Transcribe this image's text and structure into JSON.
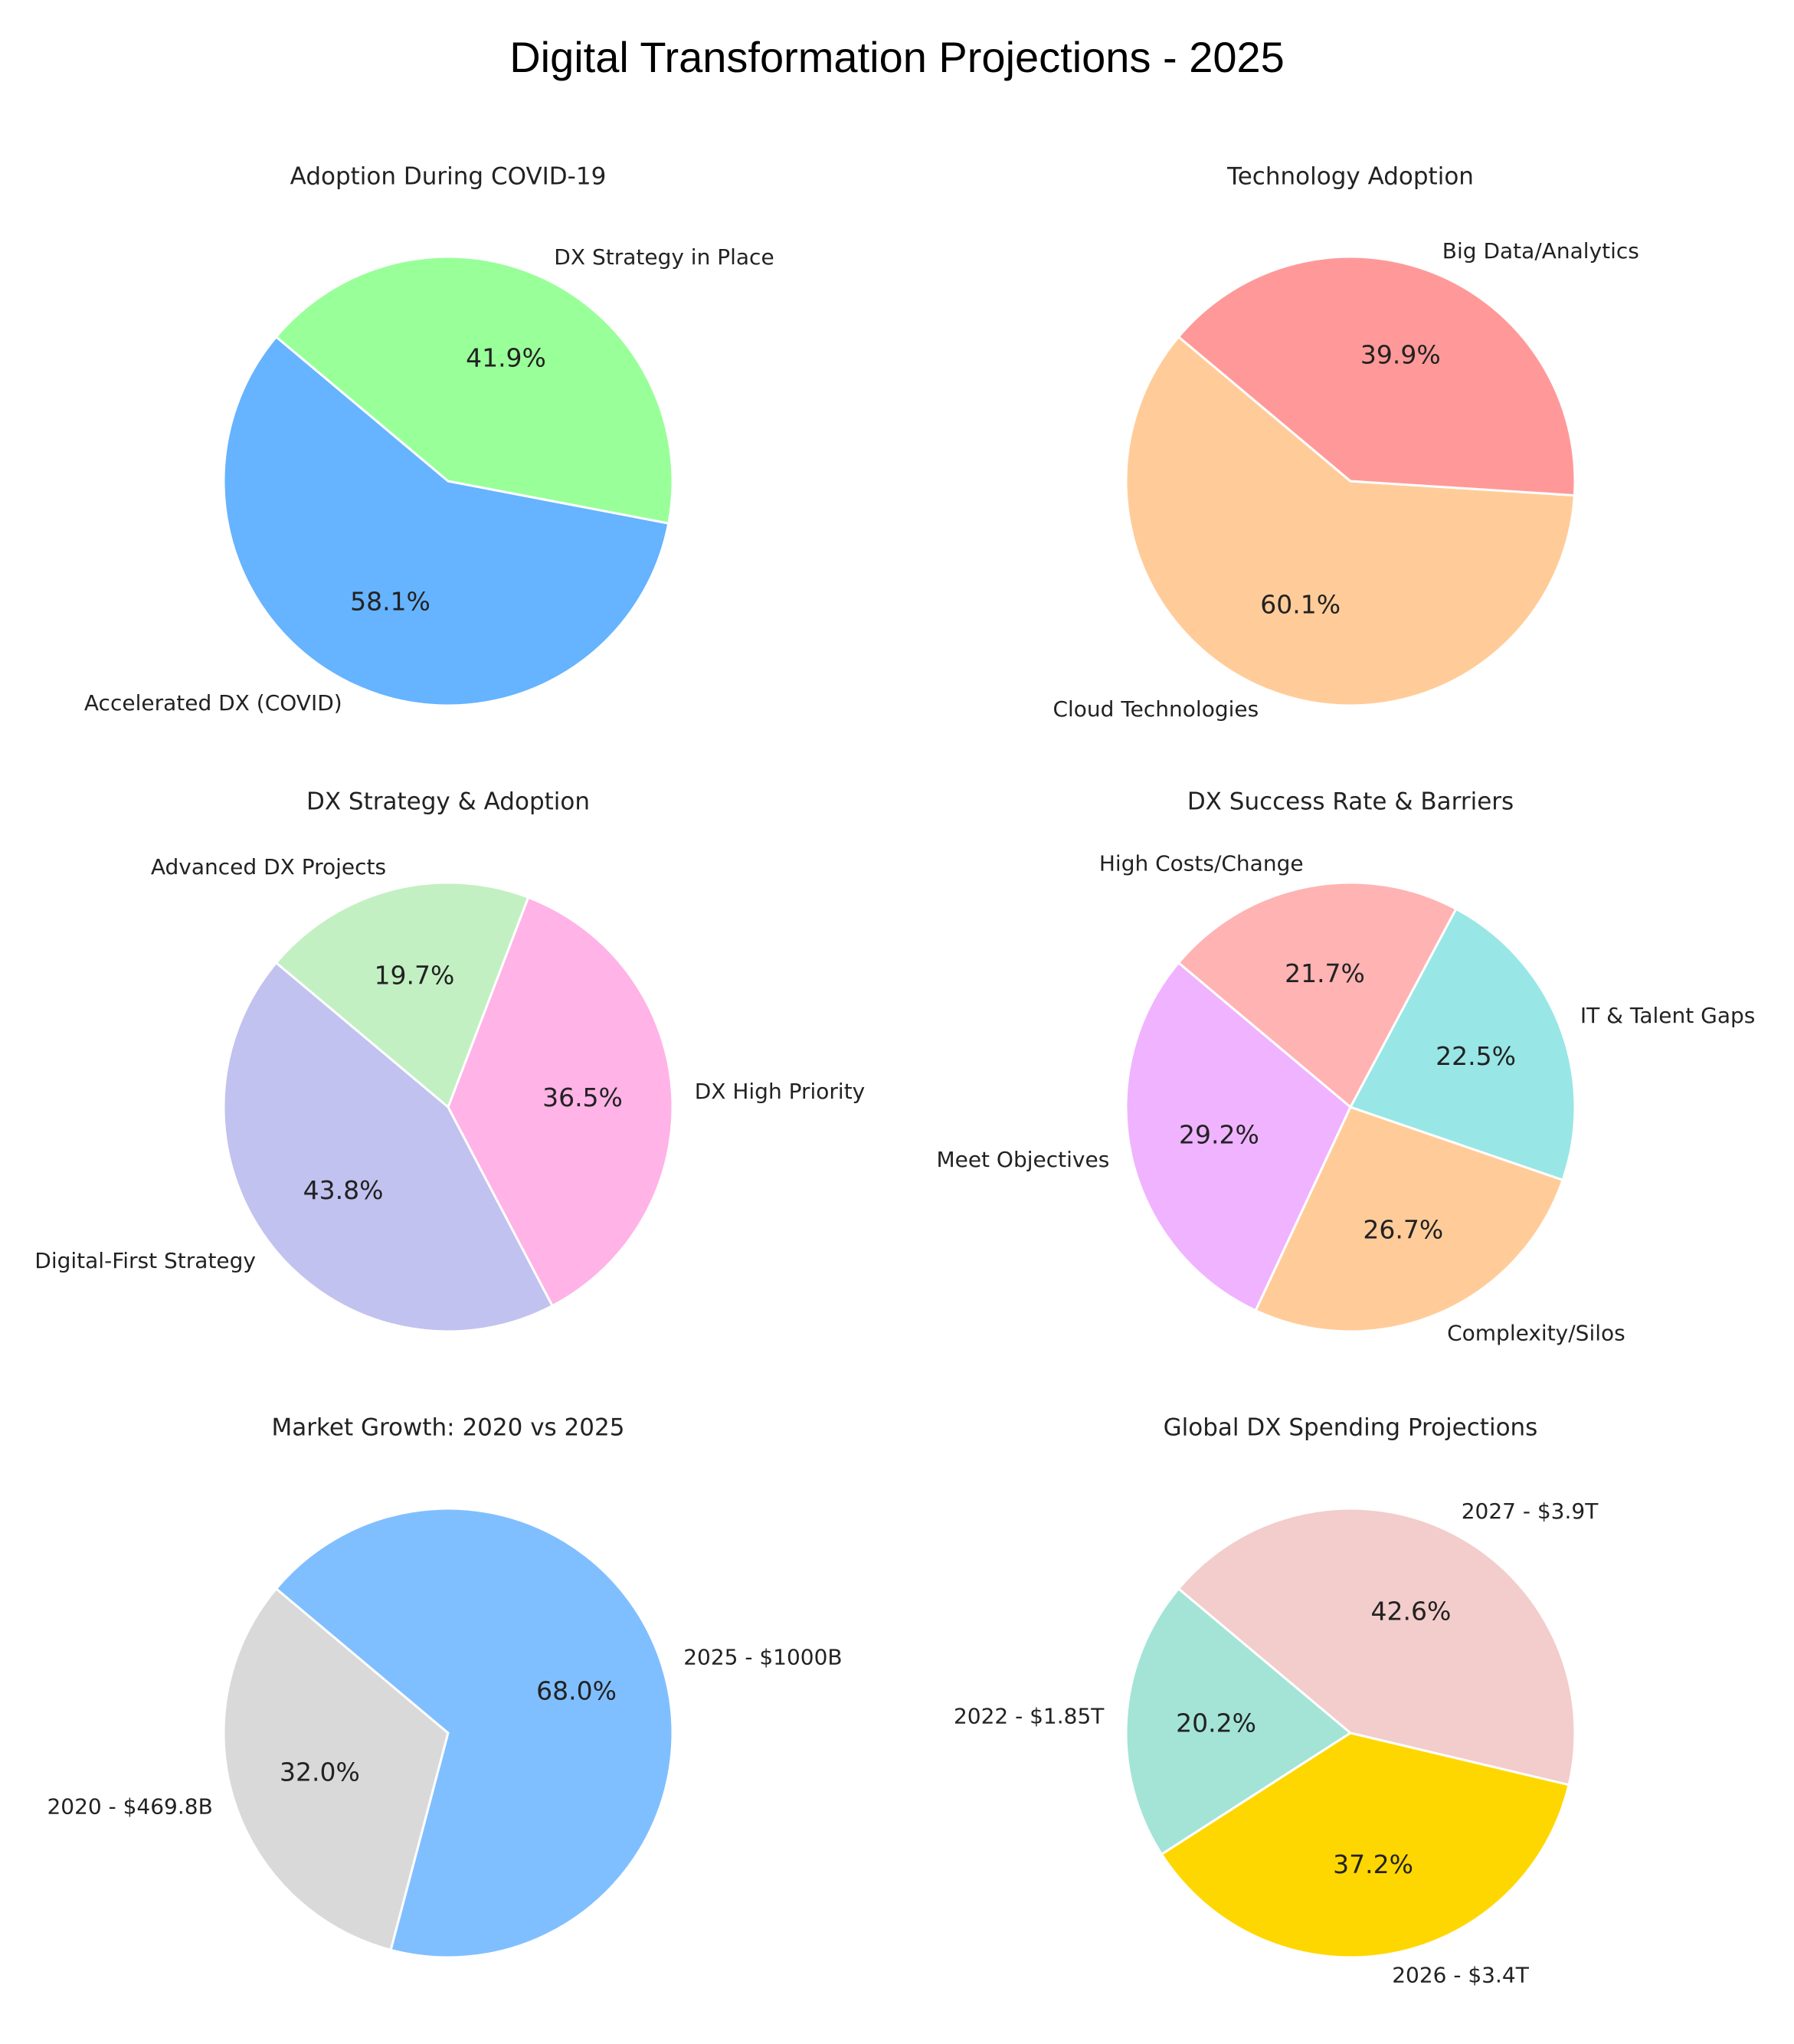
{
  "title": "Digital Transformation Projections - 2025",
  "chart_data": [
    {
      "type": "pie",
      "title": "Adoption During COVID-19",
      "labels": [
        "Accelerated DX (COVID)",
        "DX Strategy in Place"
      ],
      "values": [
        58.1,
        41.9
      ],
      "percent_labels": [
        "58.1%",
        "41.9%"
      ],
      "colors": [
        "#66b3ff",
        "#99ff99"
      ]
    },
    {
      "type": "pie",
      "title": "Technology Adoption",
      "labels": [
        "Cloud Technologies",
        "Big Data/Analytics"
      ],
      "values": [
        60.1,
        39.9
      ],
      "percent_labels": [
        "60.1%",
        "39.9%"
      ],
      "colors": [
        "#ffcc99",
        "#ff9999"
      ]
    },
    {
      "type": "pie",
      "title": "DX Strategy & Adoption",
      "labels": [
        "Digital-First Strategy",
        "DX High Priority",
        "Advanced DX Projects"
      ],
      "values": [
        43.8,
        36.5,
        19.7
      ],
      "percent_labels": [
        "43.8%",
        "36.5%",
        "19.7%"
      ],
      "colors": [
        "#c2c2f0",
        "#ffb3e6",
        "#c2f0c2"
      ]
    },
    {
      "type": "pie",
      "title": "DX Success Rate & Barriers",
      "labels": [
        "Meet Objectives",
        "Complexity/Silos",
        "IT & Talent Gaps",
        "High Costs/Change"
      ],
      "values": [
        29.2,
        26.7,
        22.5,
        21.7
      ],
      "percent_labels": [
        "29.2%",
        "26.7%",
        "22.5%",
        "21.7%"
      ],
      "colors": [
        "#f0b3ff",
        "#ffcc99",
        "#99e6e6",
        "#ffb3b3"
      ]
    },
    {
      "type": "pie",
      "title": "Market Growth: 2020 vs 2025",
      "labels": [
        "2020 - $469.8B",
        "2025 - $1000B"
      ],
      "values": [
        32.0,
        68.0
      ],
      "percent_labels": [
        "32.0%",
        "68.0%"
      ],
      "colors": [
        "#d9d9d9",
        "#80bfff"
      ]
    },
    {
      "type": "pie",
      "title": "Global DX Spending Projections",
      "labels": [
        "2022 - $1.85T",
        "2026 - $3.4T",
        "2027 - $3.9T"
      ],
      "values": [
        20.2,
        37.2,
        42.6
      ],
      "percent_labels": [
        "20.2%",
        "37.2%",
        "42.6%"
      ],
      "colors": [
        "#a3e4d7",
        "#ffd700",
        "#f3cccc"
      ]
    }
  ]
}
